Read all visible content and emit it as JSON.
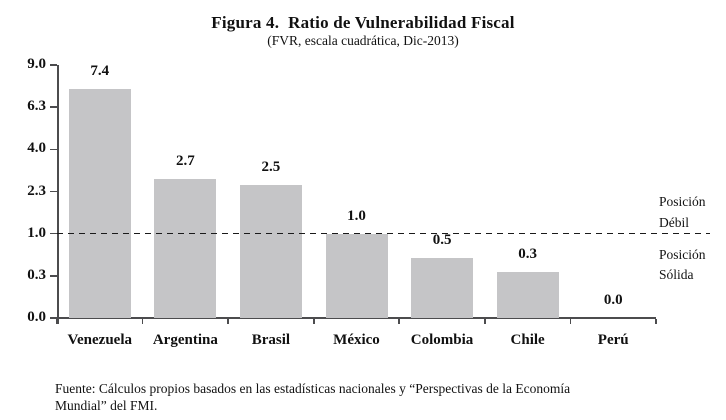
{
  "title": "Figura 4.  Ratio de Vulnerabilidad Fiscal",
  "subtitle": "(FVR, escala cuadrática, Dic-2013)",
  "source": {
    "line1": "Fuente: Cálculos propios basados en las estadísticas nacionales y “Perspectivas de la Economía",
    "line2": "Mundial” del FMI."
  },
  "chart_data": {
    "type": "bar",
    "title": "Figura 4. Ratio de Vulnerabilidad Fiscal",
    "subtitle": "(FVR, escala cuadrática, Dic-2013)",
    "scale": "quadratic (square-root axis)",
    "categories": [
      "Venezuela",
      "Argentina",
      "Brasil",
      "México",
      "Colombia",
      "Chile",
      "Perú"
    ],
    "values": [
      7.4,
      2.7,
      2.5,
      1.0,
      0.5,
      0.3,
      0.0
    ],
    "value_labels": [
      "7.4",
      "2.7",
      "2.5",
      "1.0",
      "0.5",
      "0.3",
      "0.0"
    ],
    "y_ticks": [
      "0.0",
      "0.3",
      "1.0",
      "2.3",
      "4.0",
      "6.3",
      "9.0"
    ],
    "ylim": [
      0,
      9
    ],
    "xlabel": "",
    "ylabel": "",
    "grid": false,
    "legend": false,
    "bar_color": "#c5c5c7",
    "reference_line": {
      "value": 1.0,
      "style": "dashed",
      "color": "#1a1a1a"
    },
    "annotations": {
      "above_line": [
        "Posición",
        "Débil"
      ],
      "below_line": [
        "Posición",
        "Sólida"
      ]
    }
  }
}
